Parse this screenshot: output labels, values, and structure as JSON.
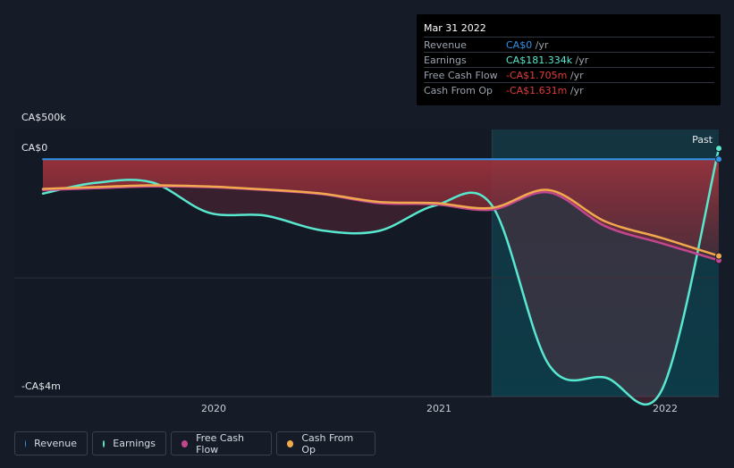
{
  "chart_data": {
    "type": "area",
    "y_axis": {
      "labels": [
        "CA$500k",
        "CA$0",
        "-CA$4m"
      ],
      "range": [
        -4000000,
        500000
      ]
    },
    "x_axis": {
      "ticks": [
        "2020",
        "2021",
        "2022"
      ],
      "range": [
        2019.27,
        2022.25
      ]
    },
    "past_label": "Past",
    "forecast_start": 2021.25,
    "series": [
      {
        "name": "Revenue",
        "color": "#2e93e8",
        "x": [
          2019.27,
          2022.25
        ],
        "y": [
          0,
          0
        ]
      },
      {
        "name": "Earnings",
        "color": "#58e8cf",
        "x": [
          2019.27,
          2019.5,
          2019.75,
          2020.0,
          2020.25,
          2020.5,
          2020.75,
          2021.0,
          2021.25,
          2021.5,
          2021.75,
          2022.0,
          2022.25
        ],
        "y": [
          -580000,
          -400000,
          -390000,
          -900000,
          -950000,
          -1200000,
          -1210000,
          -780000,
          -780000,
          -3460000,
          -3680000,
          -3880000,
          181334
        ]
      },
      {
        "name": "Free Cash Flow",
        "color": "#c2468e",
        "x": [
          2019.27,
          2019.5,
          2019.75,
          2020.0,
          2020.25,
          2020.5,
          2020.75,
          2021.0,
          2021.25,
          2021.5,
          2021.75,
          2022.0,
          2022.25
        ],
        "y": [
          -520000,
          -490000,
          -460000,
          -470000,
          -520000,
          -590000,
          -740000,
          -760000,
          -850000,
          -560000,
          -1130000,
          -1420000,
          -1705000
        ]
      },
      {
        "name": "Cash From Op",
        "color": "#f1a94e",
        "x": [
          2019.27,
          2019.5,
          2019.75,
          2020.0,
          2020.25,
          2020.5,
          2020.75,
          2021.0,
          2021.25,
          2021.5,
          2021.75,
          2022.0,
          2022.25
        ],
        "y": [
          -500000,
          -470000,
          -440000,
          -460000,
          -510000,
          -580000,
          -720000,
          -740000,
          -820000,
          -520000,
          -1050000,
          -1330000,
          -1631000
        ]
      }
    ]
  },
  "tooltip": {
    "date": "Mar 31 2022",
    "rows": [
      {
        "label": "Revenue",
        "value": "CA$0",
        "unit": " /yr",
        "color": "#2e93e8"
      },
      {
        "label": "Earnings",
        "value": "CA$181.334k",
        "unit": " /yr",
        "color": "#58e8cf"
      },
      {
        "label": "Free Cash Flow",
        "value": "-CA$1.705m",
        "unit": " /yr",
        "color": "#e03c3c"
      },
      {
        "label": "Cash From Op",
        "value": "-CA$1.631m",
        "unit": " /yr",
        "color": "#e03c3c"
      }
    ]
  },
  "legend": [
    {
      "label": "Revenue",
      "color": "#2e93e8"
    },
    {
      "label": "Earnings",
      "color": "#58e8cf"
    },
    {
      "label": "Free Cash Flow",
      "color": "#c2468e"
    },
    {
      "label": "Cash From Op",
      "color": "#f1a94e"
    }
  ]
}
